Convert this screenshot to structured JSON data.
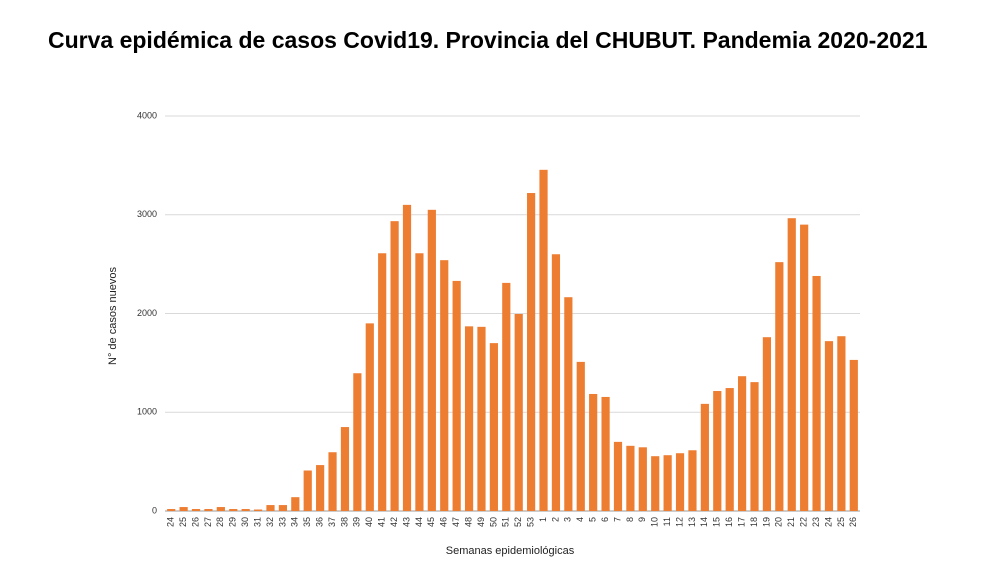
{
  "chart_data": {
    "type": "bar",
    "title": "Curva epidémica de casos Covid19. Provincia del CHUBUT. Pandemia 2020-2021",
    "x_label": "Semanas epidemiológicas",
    "y_label": "N° de casos nuevos",
    "categories": [
      "24",
      "25",
      "26",
      "27",
      "28",
      "29",
      "30",
      "31",
      "32",
      "33",
      "34",
      "35",
      "36",
      "37",
      "38",
      "39",
      "40",
      "41",
      "42",
      "43",
      "44",
      "45",
      "46",
      "47",
      "48",
      "49",
      "50",
      "51",
      "52",
      "53",
      "1",
      "2",
      "3",
      "4",
      "5",
      "6",
      "7",
      "8",
      "9",
      "10",
      "11",
      "12",
      "13",
      "14",
      "15",
      "16",
      "17",
      "18",
      "19",
      "20",
      "21",
      "22",
      "23",
      "24",
      "25",
      "26"
    ],
    "values": [
      20,
      40,
      20,
      20,
      40,
      20,
      20,
      15,
      60,
      60,
      140,
      410,
      465,
      595,
      850,
      1395,
      1900,
      2610,
      2935,
      3100,
      2610,
      3050,
      2540,
      2330,
      1870,
      1865,
      1700,
      2310,
      1995,
      3220,
      3455,
      2600,
      2165,
      1510,
      1185,
      1155,
      700,
      660,
      645,
      555,
      565,
      585,
      615,
      1085,
      1215,
      1245,
      1365,
      1305,
      1760,
      2520,
      2965,
      2900,
      2380,
      1720,
      1770,
      1530
    ],
    "color": "#ed7d31",
    "ylim": [
      0,
      4000
    ],
    "yticks": [
      0,
      1000,
      2000,
      3000,
      4000
    ],
    "grid": true
  }
}
